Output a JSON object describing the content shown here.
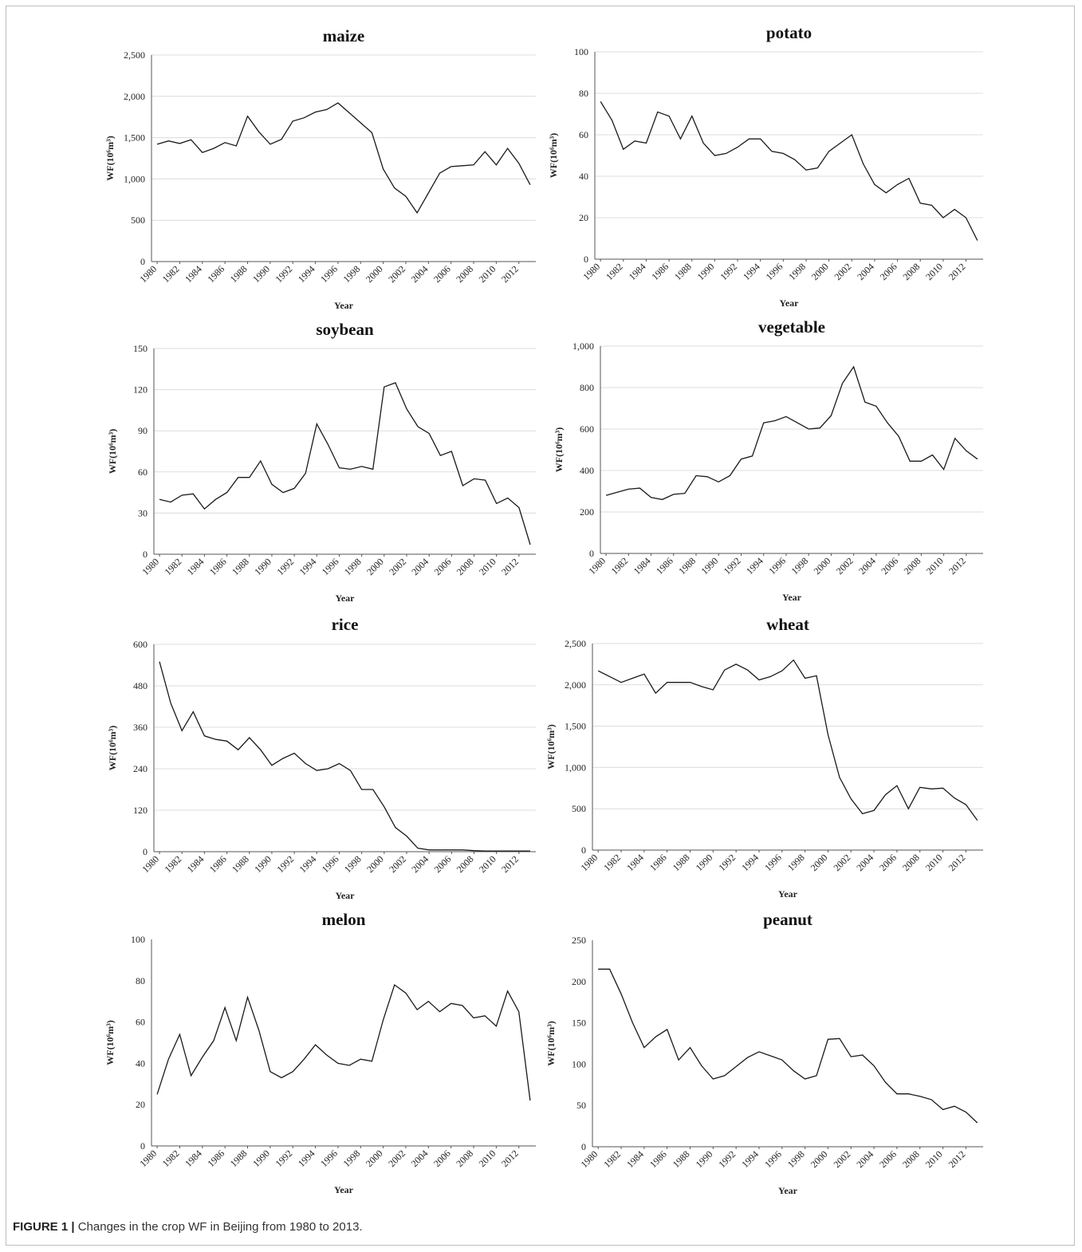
{
  "caption": {
    "label": "FIGURE 1 |",
    "text": " Changes in the crop WF in Beijing from 1980 to 2013."
  },
  "chart_data": [
    {
      "type": "line",
      "title": "maize",
      "xlabel": "Year",
      "ylabel": "WF(10⁶m³)",
      "x": [
        1980,
        1981,
        1982,
        1983,
        1984,
        1985,
        1986,
        1987,
        1988,
        1989,
        1990,
        1991,
        1992,
        1993,
        1994,
        1995,
        1996,
        1997,
        1998,
        1999,
        2000,
        2001,
        2002,
        2003,
        2004,
        2005,
        2006,
        2007,
        2008,
        2009,
        2010,
        2011,
        2012,
        2013
      ],
      "values": [
        1420,
        1460,
        1430,
        1475,
        1320,
        1370,
        1440,
        1400,
        1760,
        1570,
        1420,
        1480,
        1700,
        1740,
        1810,
        1840,
        1920,
        1800,
        1680,
        1560,
        1120,
        890,
        790,
        590,
        830,
        1070,
        1150,
        1160,
        1170,
        1330,
        1170,
        1370,
        1190,
        930
      ],
      "ylim": [
        0,
        2500
      ],
      "yticks": [
        0,
        500,
        1000,
        1500,
        2000,
        2500
      ],
      "ytick_labels": [
        "0",
        "500",
        "1,000",
        "1,500",
        "2,000",
        "2,500"
      ],
      "xtick_labels": [
        "1980",
        "1982",
        "1984",
        "1986",
        "1988",
        "1990",
        "1992",
        "1994",
        "1996",
        "1998",
        "2000",
        "2002",
        "2004",
        "2006",
        "2008",
        "2010",
        "2012"
      ],
      "grid": true
    },
    {
      "type": "line",
      "title": "potato",
      "xlabel": "Year",
      "ylabel": "WF(10⁶m³)",
      "x": [
        1980,
        1981,
        1982,
        1983,
        1984,
        1985,
        1986,
        1987,
        1988,
        1989,
        1990,
        1991,
        1992,
        1993,
        1994,
        1995,
        1996,
        1997,
        1998,
        1999,
        2000,
        2001,
        2002,
        2003,
        2004,
        2005,
        2006,
        2007,
        2008,
        2009,
        2010,
        2011,
        2012,
        2013
      ],
      "values": [
        76,
        67,
        53,
        57,
        56,
        71,
        69,
        58,
        69,
        56,
        50,
        51,
        54,
        58,
        58,
        52,
        51,
        48,
        43,
        44,
        52,
        56,
        60,
        46,
        36,
        32,
        36,
        39,
        27,
        26,
        20,
        24,
        20,
        9
      ],
      "ylim": [
        0,
        100
      ],
      "yticks": [
        0,
        20,
        40,
        60,
        80,
        100
      ],
      "ytick_labels": [
        "0",
        "20",
        "40",
        "60",
        "80",
        "100"
      ],
      "xtick_labels": [
        "1980",
        "1982",
        "1984",
        "1986",
        "1988",
        "1990",
        "1992",
        "1994",
        "1996",
        "1998",
        "2000",
        "2002",
        "2004",
        "2006",
        "2008",
        "2010",
        "2012"
      ],
      "grid": true
    },
    {
      "type": "line",
      "title": "soybean",
      "xlabel": "Year",
      "ylabel": "WF(10⁶m³)",
      "x": [
        1980,
        1981,
        1982,
        1983,
        1984,
        1985,
        1986,
        1987,
        1988,
        1989,
        1990,
        1991,
        1992,
        1993,
        1994,
        1995,
        1996,
        1997,
        1998,
        1999,
        2000,
        2001,
        2002,
        2003,
        2004,
        2005,
        2006,
        2007,
        2008,
        2009,
        2010,
        2011,
        2012,
        2013
      ],
      "values": [
        40,
        38,
        43,
        44,
        33,
        40,
        45,
        56,
        56,
        68,
        51,
        45,
        48,
        59,
        95,
        80,
        63,
        62,
        64,
        62,
        122,
        125,
        106,
        93,
        88,
        72,
        75,
        50,
        55,
        54,
        37,
        41,
        34,
        7
      ],
      "ylim": [
        0,
        150
      ],
      "yticks": [
        0,
        30,
        60,
        90,
        120,
        150
      ],
      "ytick_labels": [
        "0",
        "30",
        "60",
        "90",
        "120",
        "150"
      ],
      "xtick_labels": [
        "1980",
        "1982",
        "1984",
        "1986",
        "1988",
        "1990",
        "1992",
        "1994",
        "1996",
        "1998",
        "2000",
        "2002",
        "2004",
        "2006",
        "2008",
        "2010",
        "2012"
      ],
      "grid": true
    },
    {
      "type": "line",
      "title": "vegetable",
      "xlabel": "Year",
      "ylabel": "WF(10⁶m³)",
      "x": [
        1980,
        1981,
        1982,
        1983,
        1984,
        1985,
        1986,
        1987,
        1988,
        1989,
        1990,
        1991,
        1992,
        1993,
        1994,
        1995,
        1996,
        1997,
        1998,
        1999,
        2000,
        2001,
        2002,
        2003,
        2004,
        2005,
        2006,
        2007,
        2008,
        2009,
        2010,
        2011,
        2012,
        2013
      ],
      "values": [
        280,
        295,
        310,
        315,
        270,
        260,
        285,
        290,
        375,
        370,
        345,
        375,
        455,
        470,
        630,
        640,
        660,
        630,
        600,
        605,
        665,
        820,
        900,
        730,
        710,
        630,
        565,
        445,
        445,
        475,
        405,
        555,
        495,
        455
      ],
      "ylim": [
        0,
        1000
      ],
      "yticks": [
        0,
        200,
        400,
        600,
        800,
        1000
      ],
      "ytick_labels": [
        "0",
        "200",
        "400",
        "600",
        "800",
        "1,000"
      ],
      "xtick_labels": [
        "1980",
        "1982",
        "1984",
        "1986",
        "1988",
        "1990",
        "1992",
        "1994",
        "1996",
        "1998",
        "2000",
        "2002",
        "2004",
        "2006",
        "2008",
        "2010",
        "2012"
      ],
      "grid": true
    },
    {
      "type": "line",
      "title": "rice",
      "xlabel": "Year",
      "ylabel": "WF(10⁶m³)",
      "x": [
        1980,
        1981,
        1982,
        1983,
        1984,
        1985,
        1986,
        1987,
        1988,
        1989,
        1990,
        1991,
        1992,
        1993,
        1994,
        1995,
        1996,
        1997,
        1998,
        1999,
        2000,
        2001,
        2002,
        2003,
        2004,
        2005,
        2006,
        2007,
        2008,
        2009,
        2010,
        2011,
        2012,
        2013
      ],
      "values": [
        550,
        430,
        350,
        405,
        335,
        325,
        320,
        295,
        330,
        295,
        250,
        270,
        285,
        255,
        235,
        240,
        255,
        235,
        180,
        180,
        130,
        70,
        45,
        10,
        5,
        5,
        5,
        5,
        3,
        2,
        2,
        2,
        2,
        2
      ],
      "ylim": [
        0,
        600
      ],
      "yticks": [
        0,
        120,
        240,
        360,
        480,
        600
      ],
      "ytick_labels": [
        "0",
        "120",
        "240",
        "360",
        "480",
        "600"
      ],
      "xtick_labels": [
        "1980",
        "1982",
        "1984",
        "1986",
        "1988",
        "1990",
        "1992",
        "1994",
        "1996",
        "1998",
        "2000",
        "2002",
        "2004",
        "2006",
        "2008",
        "2010",
        "2012"
      ],
      "grid": true
    },
    {
      "type": "line",
      "title": "wheat",
      "xlabel": "Year",
      "ylabel": "WF(10⁶m³)",
      "x": [
        1980,
        1981,
        1982,
        1983,
        1984,
        1985,
        1986,
        1987,
        1988,
        1989,
        1990,
        1991,
        1992,
        1993,
        1994,
        1995,
        1996,
        1997,
        1998,
        1999,
        2000,
        2001,
        2002,
        2003,
        2004,
        2005,
        2006,
        2007,
        2008,
        2009,
        2010,
        2011,
        2012,
        2013
      ],
      "values": [
        2170,
        2100,
        2030,
        2080,
        2130,
        1900,
        2030,
        2030,
        2030,
        1980,
        1940,
        2180,
        2250,
        2180,
        2060,
        2100,
        2170,
        2300,
        2080,
        2110,
        1400,
        880,
        620,
        440,
        480,
        670,
        780,
        500,
        760,
        740,
        750,
        630,
        550,
        360
      ],
      "ylim": [
        0,
        2500
      ],
      "yticks": [
        0,
        500,
        1000,
        1500,
        2000,
        2500
      ],
      "ytick_labels": [
        "0",
        "500",
        "1,000",
        "1,500",
        "2,000",
        "2,500"
      ],
      "xtick_labels": [
        "1980",
        "1982",
        "1984",
        "1986",
        "1988",
        "1990",
        "1992",
        "1994",
        "1996",
        "1998",
        "2000",
        "2002",
        "2004",
        "2006",
        "2008",
        "2010",
        "2012"
      ],
      "grid": true
    },
    {
      "type": "line",
      "title": "melon",
      "xlabel": "Year",
      "ylabel": "WF(10⁶m³)",
      "x": [
        1980,
        1981,
        1982,
        1983,
        1984,
        1985,
        1986,
        1987,
        1988,
        1989,
        1990,
        1991,
        1992,
        1993,
        1994,
        1995,
        1996,
        1997,
        1998,
        1999,
        2000,
        2001,
        2002,
        2003,
        2004,
        2005,
        2006,
        2007,
        2008,
        2009,
        2010,
        2011,
        2012,
        2013
      ],
      "values": [
        25,
        42,
        54,
        34,
        43,
        51,
        67,
        51,
        72,
        56,
        36,
        33,
        36,
        42,
        49,
        44,
        40,
        39,
        42,
        41,
        61,
        78,
        74,
        66,
        70,
        65,
        69,
        68,
        62,
        63,
        58,
        75,
        65,
        22
      ],
      "ylim": [
        0,
        100
      ],
      "yticks": [
        0,
        20,
        40,
        60,
        80,
        100
      ],
      "ytick_labels": [
        "0",
        "20",
        "40",
        "60",
        "80",
        "100"
      ],
      "xtick_labels": [
        "1980",
        "1982",
        "1984",
        "1986",
        "1988",
        "1990",
        "1992",
        "1994",
        "1996",
        "1998",
        "2000",
        "2002",
        "2004",
        "2006",
        "2008",
        "2010",
        "2012"
      ],
      "grid": false
    },
    {
      "type": "line",
      "title": "peanut",
      "xlabel": "Year",
      "ylabel": "WF(10⁶m³)",
      "x": [
        1980,
        1981,
        1982,
        1983,
        1984,
        1985,
        1986,
        1987,
        1988,
        1989,
        1990,
        1991,
        1992,
        1993,
        1994,
        1995,
        1996,
        1997,
        1998,
        1999,
        2000,
        2001,
        2002,
        2003,
        2004,
        2005,
        2006,
        2007,
        2008,
        2009,
        2010,
        2011,
        2012,
        2013
      ],
      "values": [
        215,
        215,
        185,
        150,
        120,
        133,
        142,
        105,
        120,
        98,
        82,
        86,
        97,
        108,
        115,
        110,
        105,
        92,
        82,
        86,
        130,
        131,
        109,
        111,
        98,
        78,
        64,
        64,
        61,
        57,
        45,
        49,
        42,
        29
      ],
      "ylim": [
        0,
        250
      ],
      "yticks": [
        0,
        50,
        100,
        150,
        200,
        250
      ],
      "ytick_labels": [
        "0",
        "50",
        "100",
        "150",
        "200",
        "250"
      ],
      "xtick_labels": [
        "1980",
        "1982",
        "1984",
        "1986",
        "1988",
        "1990",
        "1992",
        "1994",
        "1996",
        "1998",
        "2000",
        "2002",
        "2004",
        "2006",
        "2008",
        "2010",
        "2012"
      ],
      "grid": false
    }
  ]
}
